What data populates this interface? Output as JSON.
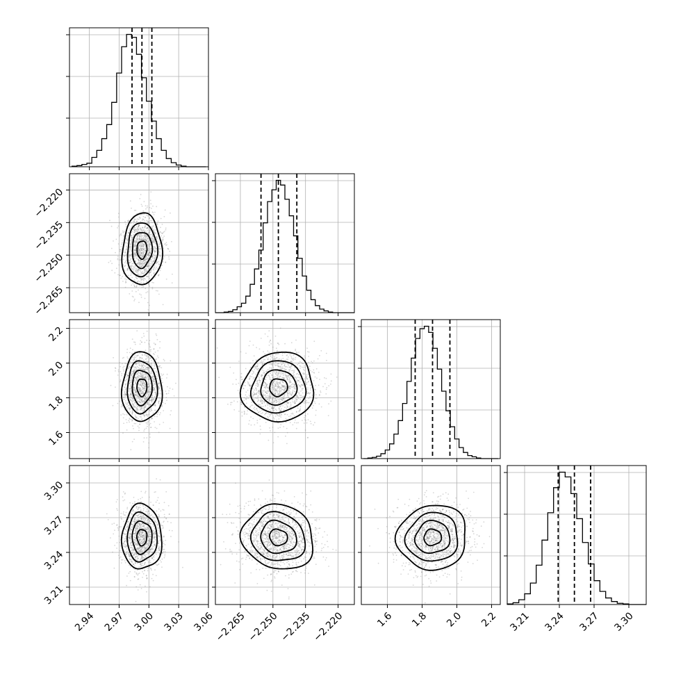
{
  "chart_data": {
    "type": "corner",
    "parameters": [
      {
        "index": 0,
        "median": 2.993,
        "q16": 2.983,
        "q84": 3.003,
        "range": [
          2.92,
          3.06
        ],
        "ticks": [
          "2.94",
          "2.97",
          "3.00",
          "3.03",
          "3.06"
        ],
        "hist": {
          "x": [
            2.925,
            2.93,
            2.935,
            2.94,
            2.945,
            2.95,
            2.955,
            2.96,
            2.965,
            2.97,
            2.975,
            2.98,
            2.985,
            2.99,
            2.995,
            3.0,
            3.005,
            3.01,
            3.015,
            3.02,
            3.025,
            3.03,
            3.035,
            3.04,
            3.045,
            3.05,
            3.055
          ],
          "counts": [
            1,
            2,
            4,
            6,
            16,
            28,
            48,
            72,
            110,
            160,
            205,
            226,
            221,
            192,
            152,
            112,
            78,
            48,
            28,
            14,
            7,
            3,
            1,
            0,
            0,
            0,
            0
          ]
        }
      },
      {
        "index": 1,
        "median": -2.2475,
        "q16": -2.2555,
        "q84": -2.239,
        "range": [
          -2.2765,
          -2.2125
        ],
        "ticks": [
          "−2.265",
          "−2.250",
          "−2.235",
          "−2.220"
        ],
        "hist": {
          "x": [
            -2.2755,
            -2.2735,
            -2.2715,
            -2.2695,
            -2.2675,
            -2.2655,
            -2.2635,
            -2.2615,
            -2.2595,
            -2.2575,
            -2.2555,
            -2.2535,
            -2.2515,
            -2.2495,
            -2.2475,
            -2.2455,
            -2.2435,
            -2.2415,
            -2.2395,
            -2.2375,
            -2.2355,
            -2.2335,
            -2.2315,
            -2.2295,
            -2.2275,
            -2.2255,
            -2.2235,
            -2.2215,
            -2.2195,
            -2.2175,
            -2.2155,
            -2.2135
          ],
          "counts": [
            0,
            0,
            1,
            2,
            5,
            10,
            16,
            28,
            48,
            74,
            106,
            152,
            188,
            208,
            224,
            216,
            192,
            164,
            130,
            92,
            62,
            38,
            22,
            12,
            6,
            3,
            1,
            0,
            0,
            0,
            0,
            0
          ]
        }
      },
      {
        "index": 2,
        "median": 1.86,
        "q16": 1.76,
        "q84": 1.96,
        "range": [
          1.45,
          2.25
        ],
        "ticks": [
          "1.6",
          "1.8",
          "2.0",
          "2.2"
        ],
        "hist": {
          "x": [
            1.475,
            1.5,
            1.525,
            1.55,
            1.575,
            1.6,
            1.625,
            1.65,
            1.675,
            1.7,
            1.725,
            1.75,
            1.775,
            1.8,
            1.825,
            1.85,
            1.875,
            1.9,
            1.925,
            1.95,
            1.975,
            2.0,
            2.025,
            2.05,
            2.075,
            2.1,
            2.125,
            2.15,
            2.175,
            2.2,
            2.225
          ],
          "counts": [
            0,
            1,
            2,
            4,
            8,
            14,
            24,
            40,
            62,
            90,
            126,
            164,
            196,
            212,
            216,
            206,
            180,
            146,
            110,
            78,
            52,
            32,
            18,
            10,
            5,
            3,
            1,
            0,
            0,
            0,
            0
          ]
        }
      },
      {
        "index": 3,
        "median": 3.253,
        "q16": 3.239,
        "q84": 3.267,
        "range": [
          3.195,
          3.315
        ],
        "ticks": [
          "3.21",
          "3.24",
          "3.27",
          "3.30"
        ],
        "hist": {
          "x": [
            3.1975,
            3.2025,
            3.2075,
            3.2125,
            3.2175,
            3.2225,
            3.2275,
            3.2325,
            3.2375,
            3.2425,
            3.2475,
            3.2525,
            3.2575,
            3.2625,
            3.2675,
            3.2725,
            3.2775,
            3.2825,
            3.2875,
            3.2925,
            3.2975,
            3.3025,
            3.3075,
            3.3125
          ],
          "counts": [
            1,
            3,
            8,
            18,
            36,
            66,
            108,
            154,
            196,
            222,
            214,
            186,
            144,
            104,
            68,
            40,
            22,
            11,
            5,
            2,
            1,
            0,
            0,
            0
          ]
        }
      }
    ],
    "pairs": [
      {
        "i": 0,
        "j": 1,
        "rho": 0.05
      },
      {
        "i": 0,
        "j": 2,
        "rho": 0.0
      },
      {
        "i": 1,
        "j": 2,
        "rho": 0.05
      },
      {
        "i": 0,
        "j": 3,
        "rho": 0.0
      },
      {
        "i": 1,
        "j": 3,
        "rho": -0.1
      },
      {
        "i": 2,
        "j": 3,
        "rho": 0.05
      }
    ],
    "contour_levels": [
      0.118,
      0.393,
      0.675,
      0.865
    ],
    "grid": true,
    "colors": {
      "line": "#000000",
      "grid": "#b0b0b0",
      "points": "#8a8a8a"
    }
  }
}
